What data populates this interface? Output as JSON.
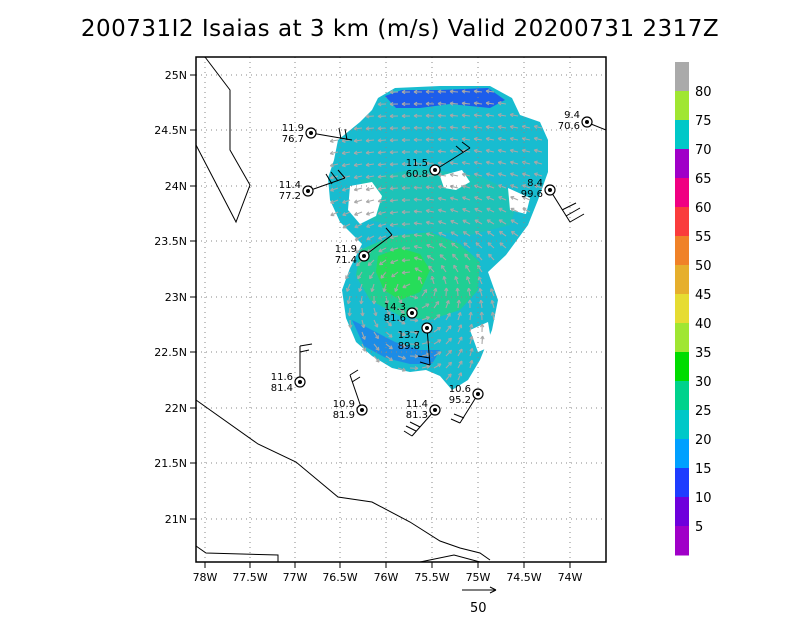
{
  "title": "200731I2 Isaias at 3 km (m/s) Valid 20200731 2317Z",
  "x_ticks": [
    "78W",
    "77.5W",
    "77W",
    "76.5W",
    "76W",
    "75.5W",
    "75W",
    "74.5W",
    "74W"
  ],
  "y_ticks": [
    "25N",
    "24.5N",
    "24N",
    "23.5N",
    "23N",
    "22.5N",
    "22N",
    "21.5N",
    "21N"
  ],
  "colorbar": {
    "labels": [
      "5",
      "10",
      "15",
      "20",
      "25",
      "30",
      "35",
      "40",
      "45",
      "50",
      "55",
      "60",
      "65",
      "70",
      "75",
      "80"
    ],
    "colors": [
      "#a000c8",
      "#6e00dc",
      "#1e3cff",
      "#00a0ff",
      "#00c8c8",
      "#00d28c",
      "#00dc00",
      "#a0e632",
      "#e6dc32",
      "#e6af2d",
      "#f08228",
      "#fa3c3c",
      "#f00082",
      "#a000c8",
      "#00c8c8",
      "#a0e632",
      "#aaaaaa"
    ]
  },
  "reference_vector": {
    "label": "50"
  },
  "stations": [
    {
      "line1": "11.9",
      "line2": "76.7"
    },
    {
      "line1": "11.5",
      "line2": "60.8"
    },
    {
      "line1": "11.4",
      "line2": "77.2"
    },
    {
      "line1": "9.4",
      "line2": "70.6"
    },
    {
      "line1": "8.4",
      "line2": "99.6"
    },
    {
      "line1": "11.9",
      "line2": "71.4"
    },
    {
      "line1": "14.3",
      "line2": "81.6"
    },
    {
      "line1": "13.7",
      "line2": "89.8"
    },
    {
      "line1": "11.6",
      "line2": "81.4"
    },
    {
      "line1": "10.9",
      "line2": "81.9"
    },
    {
      "line1": "11.4",
      "line2": "81.3"
    },
    {
      "line1": "10.6",
      "line2": "95.2"
    }
  ]
}
